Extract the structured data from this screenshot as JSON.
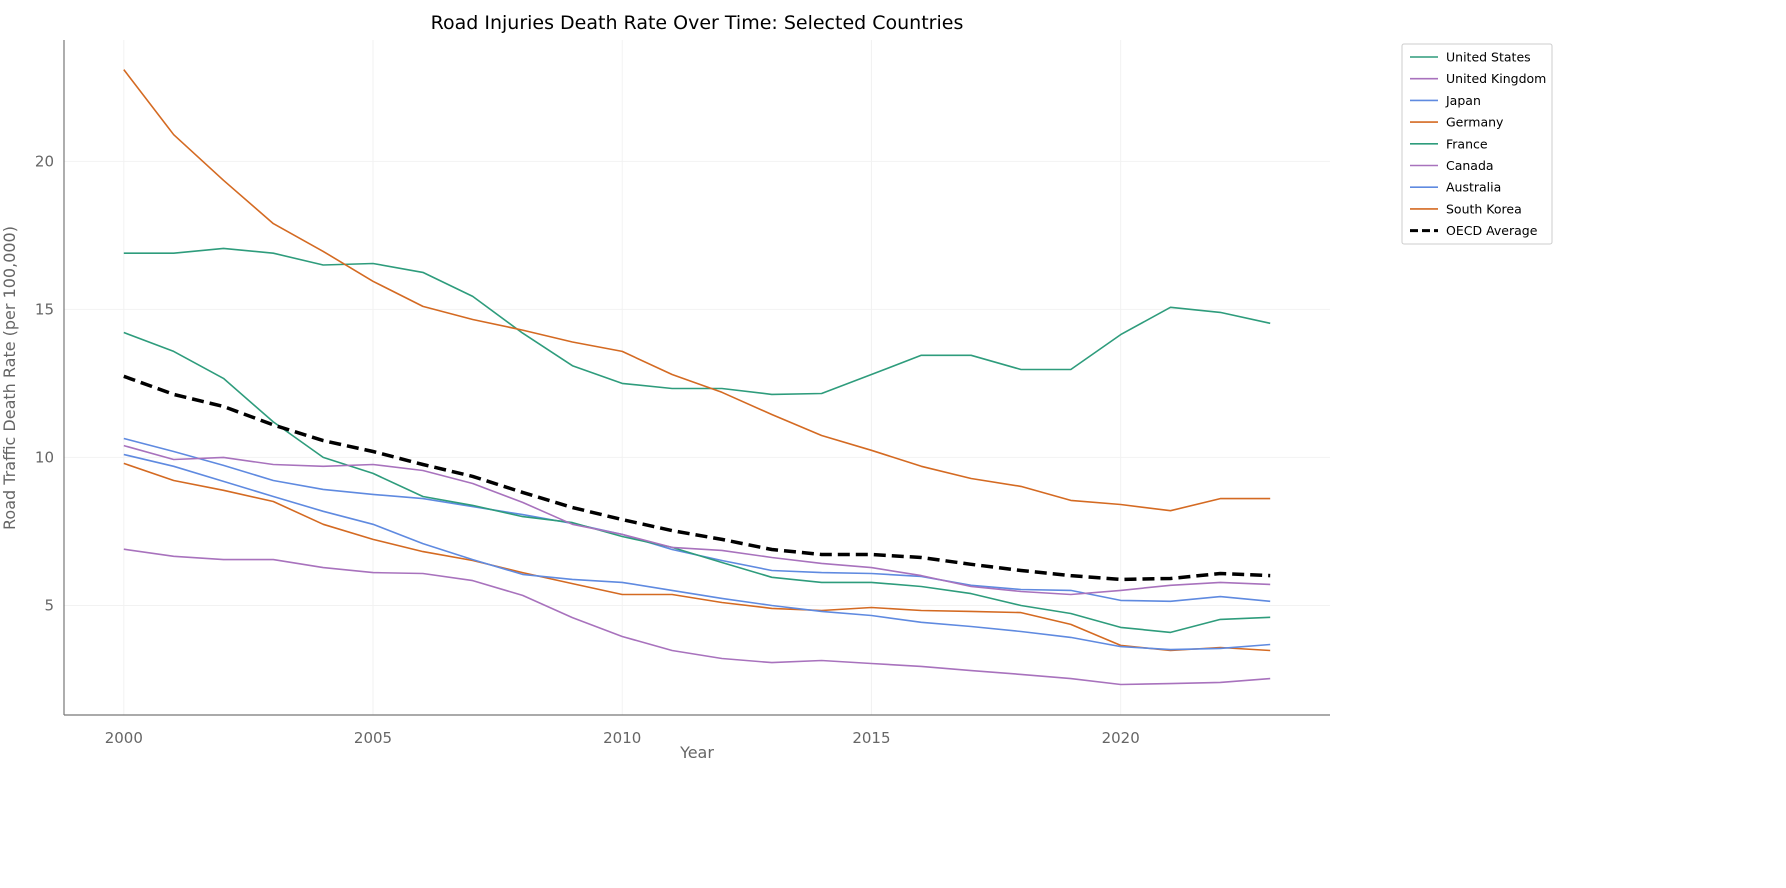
{
  "chart_data": {
    "type": "line",
    "title": "Road Injuries Death Rate Over Time: Selected Countries",
    "xlabel": "Year",
    "ylabel": "Road Traffic Death Rate (per 100,000)",
    "xlim": [
      1998.8,
      2024.2
    ],
    "ylim": [
      1.3,
      24.1
    ],
    "xticks": [
      2000,
      2005,
      2010,
      2015,
      2020
    ],
    "yticks": [
      5,
      10,
      15,
      20
    ],
    "grid": true,
    "legend_position": "outside-top-right",
    "x": [
      2000,
      2001,
      2002,
      2003,
      2004,
      2005,
      2006,
      2007,
      2008,
      2009,
      2010,
      2011,
      2012,
      2013,
      2014,
      2015,
      2016,
      2017,
      2018,
      2019,
      2020,
      2021,
      2022,
      2023
    ],
    "series": [
      {
        "name": "United States",
        "color": "#2e9c7c",
        "dashed": false,
        "values": [
          16.9,
          16.9,
          17.06,
          16.9,
          16.5,
          16.55,
          16.25,
          15.44,
          14.2,
          13.1,
          12.5,
          12.33,
          12.33,
          12.13,
          12.16,
          12.8,
          13.45,
          13.45,
          12.97,
          12.97,
          14.15,
          15.07,
          14.9,
          14.53
        ]
      },
      {
        "name": "United Kingdom",
        "color": "#a872bd",
        "dashed": false,
        "values": [
          6.9,
          6.66,
          6.55,
          6.55,
          6.28,
          6.11,
          6.08,
          5.84,
          5.34,
          4.59,
          3.95,
          3.48,
          3.21,
          3.07,
          3.14,
          3.04,
          2.94,
          2.8,
          2.67,
          2.53,
          2.33,
          2.36,
          2.4,
          2.53
        ]
      },
      {
        "name": "Japan",
        "color": "#5f8ae0",
        "dashed": false,
        "values": [
          10.64,
          10.2,
          9.73,
          9.22,
          8.92,
          8.75,
          8.61,
          8.34,
          8.07,
          7.77,
          7.4,
          6.89,
          6.52,
          6.18,
          6.11,
          6.08,
          5.98,
          5.68,
          5.54,
          5.51,
          5.17,
          5.14,
          5.3,
          5.14
        ]
      },
      {
        "name": "Germany",
        "color": "#d46a22",
        "dashed": false,
        "values": [
          9.8,
          9.22,
          8.89,
          8.51,
          7.74,
          7.23,
          6.82,
          6.52,
          6.11,
          5.74,
          5.37,
          5.37,
          5.1,
          4.9,
          4.83,
          4.93,
          4.83,
          4.8,
          4.76,
          4.36,
          3.65,
          3.48,
          3.58,
          3.48
        ]
      },
      {
        "name": "France",
        "color": "#2e9c7c",
        "dashed": false,
        "values": [
          14.22,
          13.58,
          12.67,
          11.2,
          10.0,
          9.46,
          8.68,
          8.38,
          8.0,
          7.8,
          7.33,
          6.96,
          6.45,
          5.95,
          5.78,
          5.78,
          5.64,
          5.4,
          5.0,
          4.73,
          4.26,
          4.09,
          4.53,
          4.6
        ]
      },
      {
        "name": "Canada",
        "color": "#a872bd",
        "dashed": false,
        "values": [
          10.4,
          9.93,
          10.0,
          9.76,
          9.7,
          9.76,
          9.56,
          9.12,
          8.48,
          7.74,
          7.4,
          6.96,
          6.86,
          6.62,
          6.42,
          6.28,
          6.01,
          5.64,
          5.47,
          5.37,
          5.51,
          5.68,
          5.78,
          5.71
        ]
      },
      {
        "name": "Australia",
        "color": "#5f8ae0",
        "dashed": false,
        "values": [
          10.1,
          9.7,
          9.19,
          8.68,
          8.18,
          7.74,
          7.09,
          6.55,
          6.05,
          5.88,
          5.78,
          5.51,
          5.24,
          5.0,
          4.8,
          4.66,
          4.43,
          4.29,
          4.12,
          3.92,
          3.61,
          3.51,
          3.55,
          3.68
        ]
      },
      {
        "name": "South Korea",
        "color": "#d46a22",
        "dashed": false,
        "values": [
          23.1,
          20.9,
          19.36,
          17.9,
          16.96,
          15.95,
          15.1,
          14.66,
          14.3,
          13.9,
          13.58,
          12.8,
          12.2,
          11.45,
          10.74,
          10.24,
          9.7,
          9.29,
          9.02,
          8.55,
          8.41,
          8.2,
          8.61,
          8.61
        ]
      },
      {
        "name": "OECD Average",
        "color": "#000000",
        "dashed": true,
        "values": [
          12.74,
          12.13,
          11.72,
          11.1,
          10.57,
          10.2,
          9.76,
          9.36,
          8.82,
          8.31,
          7.9,
          7.53,
          7.23,
          6.89,
          6.72,
          6.72,
          6.62,
          6.39,
          6.18,
          6.01,
          5.88,
          5.91,
          6.08,
          6.01
        ]
      }
    ]
  }
}
